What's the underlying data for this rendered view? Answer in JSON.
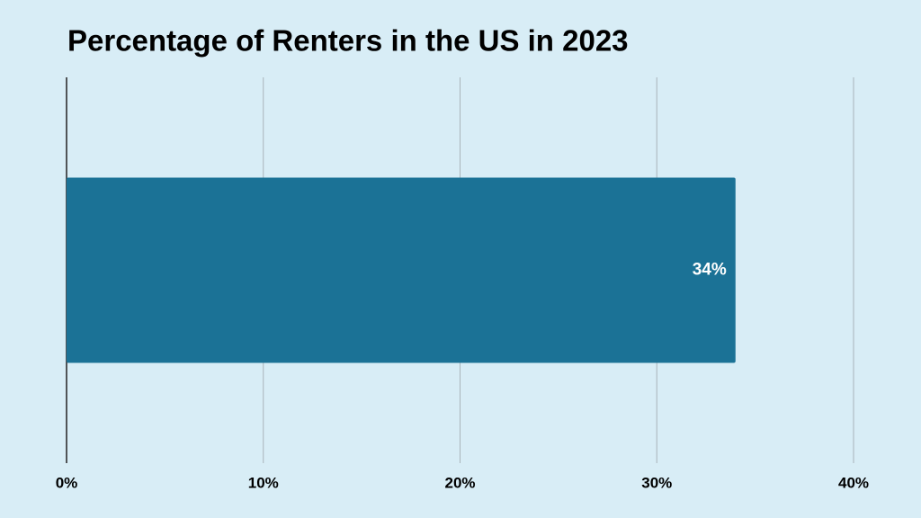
{
  "chart_data": {
    "type": "hbar",
    "title": "Percentage of Renters in the US in 2023",
    "values": [
      34
    ],
    "value_labels": [
      "34%"
    ],
    "color": "#1b7296",
    "xlim": [
      0,
      40
    ],
    "xticks": [
      {
        "value": 0,
        "label": "0%"
      },
      {
        "value": 10,
        "label": "10%"
      },
      {
        "value": 20,
        "label": "20%"
      },
      {
        "value": 30,
        "label": "30%"
      },
      {
        "value": 40,
        "label": "40%"
      }
    ],
    "grid": true
  }
}
